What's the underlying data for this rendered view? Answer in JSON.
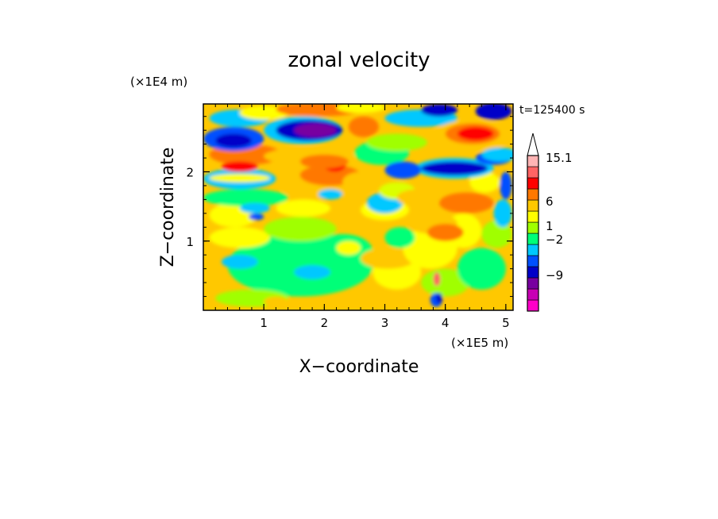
{
  "chart_data": {
    "type": "heatmap",
    "title": "zonal velocity",
    "xlabel": "X−coordinate",
    "ylabel": "Z−coordinate",
    "x_scale_label": "(×1E5 m)",
    "y_scale_label": "(×1E4 m)",
    "time_label": "t=125400 s",
    "xlim": [
      0,
      5.12
    ],
    "ylim": [
      0,
      2.98
    ],
    "x_ticks": [
      1,
      2,
      3,
      4,
      5
    ],
    "y_ticks": [
      1,
      2
    ],
    "colorbar": {
      "labels": [
        "15.1",
        "6",
        "1",
        "−2",
        "−9"
      ],
      "colors": [
        "#ff00c8",
        "#c800b4",
        "#7800a0",
        "#0000c8",
        "#0050ff",
        "#00c8ff",
        "#00ff78",
        "#a0ff00",
        "#ffff00",
        "#ffc800",
        "#ff7800",
        "#ff0000",
        "#ff6464",
        "#ffb4b4"
      ]
    },
    "field_description_values": [
      {
        "region": "upper-left band",
        "x": [
          0.1,
          1.0
        ],
        "z": [
          2.3,
          2.6
        ],
        "value": -6
      },
      {
        "region": "purple core",
        "x": [
          1.3,
          2.4
        ],
        "z": [
          2.4,
          2.7
        ],
        "value": -9
      },
      {
        "region": "red core",
        "x": [
          2.0,
          2.3
        ],
        "z": [
          2.0,
          2.2
        ],
        "value": 6
      },
      {
        "region": "right red",
        "x": [
          4.0,
          5.0
        ],
        "z": [
          2.3,
          2.6
        ],
        "value": 8
      },
      {
        "region": "right blue band",
        "x": [
          3.5,
          4.8
        ],
        "z": [
          1.8,
          2.4
        ],
        "value": -6
      },
      {
        "region": "lower green",
        "x": [
          0.5,
          3.0
        ],
        "z": [
          0.2,
          1.3
        ],
        "value": -1
      }
    ]
  }
}
